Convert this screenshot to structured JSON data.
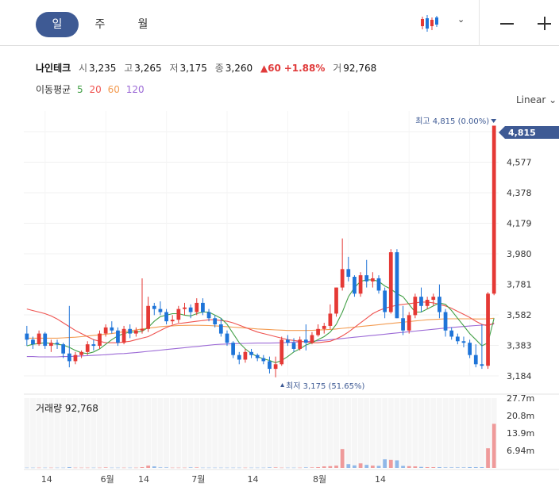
{
  "toolbar": {
    "periods": [
      "일",
      "주",
      "월"
    ],
    "active_period": "일",
    "chart_type_icon": "candlestick-icon",
    "dropdown_icon": "chevron-down-icon",
    "zoom_out_icon": "minus-icon",
    "zoom_in_icon": "plus-icon"
  },
  "quote": {
    "name": "나인테크",
    "open_label": "시",
    "open": "3,235",
    "high_label": "고",
    "high": "3,265",
    "low_label": "저",
    "low": "3,175",
    "close_label": "종",
    "close": "3,260",
    "change": "▲60",
    "change_pct": "+1.88%",
    "volume_label": "거",
    "volume": "92,768"
  },
  "moving_average": {
    "label": "이동평균",
    "periods": [
      "5",
      "20",
      "60",
      "120"
    ],
    "colors": [
      "#43a047",
      "#ef5350",
      "#f39c52",
      "#9c6ad6"
    ]
  },
  "scale_mode": "Linear",
  "colors": {
    "up": "#e53935",
    "down": "#1e74d8",
    "accent": "#3e5a94"
  },
  "chart_data": {
    "type": "candlestick",
    "y_ticks": [
      "4,776",
      "4,577",
      "4,378",
      "4,179",
      "3,980",
      "3,781",
      "3,582",
      "3,383",
      "3,184"
    ],
    "ylim": [
      3184,
      4776
    ],
    "x_ticks": [
      "14",
      "6월",
      "14",
      "7월",
      "14",
      "8월",
      "14"
    ],
    "last_price_label": "4,815",
    "max_label": "최고 4,815 (0.00%)",
    "min_label": "최저 3,175 (51.65%)",
    "candles": [
      [
        3460,
        3510,
        3380,
        3420
      ],
      [
        3420,
        3440,
        3360,
        3390
      ],
      [
        3390,
        3480,
        3380,
        3460
      ],
      [
        3460,
        3470,
        3360,
        3380
      ],
      [
        3380,
        3420,
        3340,
        3400
      ],
      [
        3400,
        3420,
        3360,
        3390
      ],
      [
        3390,
        3400,
        3300,
        3330
      ],
      [
        3330,
        3640,
        3240,
        3280
      ],
      [
        3280,
        3340,
        3260,
        3320
      ],
      [
        3320,
        3350,
        3300,
        3340
      ],
      [
        3340,
        3410,
        3320,
        3390
      ],
      [
        3390,
        3420,
        3350,
        3380
      ],
      [
        3380,
        3480,
        3360,
        3460
      ],
      [
        3460,
        3520,
        3440,
        3500
      ],
      [
        3500,
        3540,
        3460,
        3480
      ],
      [
        3480,
        3500,
        3380,
        3400
      ],
      [
        3400,
        3510,
        3390,
        3490
      ],
      [
        3490,
        3520,
        3430,
        3460
      ],
      [
        3460,
        3500,
        3440,
        3480
      ],
      [
        3480,
        3820,
        3460,
        3490
      ],
      [
        3490,
        3700,
        3470,
        3640
      ],
      [
        3640,
        3660,
        3580,
        3620
      ],
      [
        3620,
        3670,
        3580,
        3600
      ],
      [
        3600,
        3620,
        3520,
        3540
      ],
      [
        3540,
        3580,
        3520,
        3550
      ],
      [
        3550,
        3640,
        3530,
        3620
      ],
      [
        3620,
        3660,
        3580,
        3630
      ],
      [
        3630,
        3650,
        3560,
        3600
      ],
      [
        3600,
        3690,
        3580,
        3660
      ],
      [
        3660,
        3690,
        3580,
        3600
      ],
      [
        3600,
        3620,
        3540,
        3560
      ],
      [
        3560,
        3580,
        3500,
        3520
      ],
      [
        3520,
        3560,
        3440,
        3460
      ],
      [
        3460,
        3480,
        3380,
        3400
      ],
      [
        3400,
        3410,
        3300,
        3320
      ],
      [
        3320,
        3340,
        3260,
        3290
      ],
      [
        3290,
        3360,
        3270,
        3340
      ],
      [
        3340,
        3360,
        3300,
        3320
      ],
      [
        3320,
        3330,
        3280,
        3300
      ],
      [
        3300,
        3320,
        3260,
        3280
      ],
      [
        3280,
        3310,
        3200,
        3230
      ],
      [
        3230,
        3310,
        3175,
        3260
      ],
      [
        3260,
        3440,
        3250,
        3420
      ],
      [
        3420,
        3450,
        3380,
        3400
      ],
      [
        3400,
        3430,
        3340,
        3360
      ],
      [
        3360,
        3440,
        3350,
        3420
      ],
      [
        3420,
        3520,
        3350,
        3400
      ],
      [
        3400,
        3470,
        3390,
        3450
      ],
      [
        3450,
        3520,
        3440,
        3490
      ],
      [
        3490,
        3530,
        3460,
        3510
      ],
      [
        3510,
        3650,
        3490,
        3590
      ],
      [
        3590,
        3760,
        3570,
        3760
      ],
      [
        3760,
        4080,
        3740,
        3880
      ],
      [
        3880,
        3960,
        3800,
        3830
      ],
      [
        3830,
        3840,
        3700,
        3720
      ],
      [
        3720,
        3860,
        3700,
        3840
      ],
      [
        3840,
        3940,
        3760,
        3800
      ],
      [
        3800,
        3860,
        3760,
        3820
      ],
      [
        3820,
        3840,
        3720,
        3740
      ],
      [
        3740,
        3760,
        3560,
        3600
      ],
      [
        3600,
        4010,
        3590,
        3990
      ],
      [
        3990,
        4010,
        3560,
        3560
      ],
      [
        3560,
        3640,
        3450,
        3480
      ],
      [
        3480,
        3600,
        3460,
        3580
      ],
      [
        3580,
        3720,
        3560,
        3700
      ],
      [
        3700,
        3760,
        3600,
        3640
      ],
      [
        3640,
        3700,
        3620,
        3680
      ],
      [
        3680,
        3720,
        3640,
        3700
      ],
      [
        3700,
        3780,
        3560,
        3600
      ],
      [
        3600,
        3620,
        3440,
        3480
      ],
      [
        3480,
        3500,
        3420,
        3440
      ],
      [
        3440,
        3460,
        3390,
        3410
      ],
      [
        3410,
        3440,
        3370,
        3400
      ],
      [
        3400,
        3420,
        3300,
        3320
      ],
      [
        3320,
        3390,
        3240,
        3260
      ],
      [
        3260,
        3520,
        3230,
        3250
      ],
      [
        3250,
        3730,
        3230,
        3720
      ],
      [
        3720,
        4815,
        3710,
        4815
      ]
    ],
    "ma5": [
      3380,
      3390,
      3395,
      3400,
      3395,
      3390,
      3385,
      3370,
      3350,
      3335,
      3330,
      3340,
      3360,
      3390,
      3420,
      3445,
      3460,
      3470,
      3470,
      3475,
      3500,
      3540,
      3570,
      3580,
      3590,
      3590,
      3580,
      3575,
      3590,
      3600,
      3600,
      3580,
      3560,
      3520,
      3460,
      3400,
      3360,
      3330,
      3310,
      3295,
      3285,
      3270,
      3285,
      3310,
      3340,
      3360,
      3385,
      3400,
      3420,
      3440,
      3470,
      3520,
      3600,
      3700,
      3760,
      3800,
      3810,
      3810,
      3800,
      3770,
      3750,
      3720,
      3700,
      3650,
      3600,
      3600,
      3620,
      3640,
      3660,
      3650,
      3610,
      3560,
      3510,
      3460,
      3420,
      3380,
      3400,
      3560
    ],
    "ma20": [
      3620,
      3610,
      3600,
      3590,
      3575,
      3555,
      3530,
      3505,
      3480,
      3460,
      3440,
      3420,
      3410,
      3400,
      3400,
      3400,
      3405,
      3410,
      3420,
      3430,
      3440,
      3460,
      3480,
      3500,
      3515,
      3525,
      3530,
      3535,
      3540,
      3545,
      3550,
      3550,
      3545,
      3540,
      3530,
      3515,
      3500,
      3485,
      3470,
      3460,
      3450,
      3440,
      3430,
      3420,
      3415,
      3410,
      3405,
      3400,
      3400,
      3405,
      3410,
      3425,
      3445,
      3470,
      3500,
      3530,
      3560,
      3590,
      3610,
      3625,
      3635,
      3645,
      3650,
      3655,
      3660,
      3665,
      3665,
      3660,
      3650,
      3640,
      3625,
      3605,
      3585,
      3565,
      3540,
      3520,
      3510,
      3530
    ],
    "ma60": [
      3430,
      3430,
      3430,
      3430,
      3430,
      3430,
      3432,
      3434,
      3436,
      3440,
      3444,
      3448,
      3452,
      3456,
      3460,
      3466,
      3472,
      3478,
      3484,
      3490,
      3495,
      3500,
      3505,
      3508,
      3510,
      3512,
      3513,
      3514,
      3514,
      3513,
      3512,
      3510,
      3508,
      3505,
      3502,
      3499,
      3496,
      3493,
      3490,
      3488,
      3486,
      3484,
      3482,
      3480,
      3480,
      3480,
      3480,
      3481,
      3483,
      3485,
      3487,
      3490,
      3494,
      3498,
      3502,
      3506,
      3510,
      3514,
      3518,
      3522,
      3526,
      3530,
      3534,
      3538,
      3542,
      3546,
      3550,
      3552,
      3554,
      3556,
      3556,
      3556,
      3556,
      3556,
      3555,
      3555,
      3556,
      3560
    ],
    "ma120": [
      3310,
      3310,
      3308,
      3308,
      3308,
      3308,
      3310,
      3310,
      3312,
      3314,
      3316,
      3318,
      3320,
      3322,
      3325,
      3328,
      3330,
      3333,
      3336,
      3340,
      3344,
      3348,
      3352,
      3356,
      3360,
      3364,
      3368,
      3372,
      3376,
      3380,
      3384,
      3388,
      3390,
      3392,
      3394,
      3395,
      3396,
      3397,
      3398,
      3398,
      3398,
      3399,
      3400,
      3402,
      3404,
      3406,
      3408,
      3410,
      3413,
      3416,
      3420,
      3424,
      3428,
      3432,
      3436,
      3440,
      3444,
      3448,
      3452,
      3456,
      3460,
      3464,
      3468,
      3472,
      3476,
      3480,
      3484,
      3488,
      3492,
      3496,
      3500,
      3503,
      3506,
      3509,
      3512,
      3515,
      3518,
      3522
    ],
    "volume_label": "거래량 92,768",
    "volume_ticks": [
      "27.7m",
      "20.8m",
      "13.9m",
      "6.94m"
    ],
    "volume_ylim": [
      0,
      27.7
    ],
    "volume_values": [
      0.1,
      0.1,
      0.1,
      0.1,
      0.1,
      0.1,
      0.1,
      0.3,
      0.1,
      0.1,
      0.1,
      0.1,
      0.1,
      0.2,
      0.1,
      0.1,
      0.1,
      0.1,
      0.1,
      0.3,
      0.9,
      0.6,
      0.2,
      0.2,
      0.1,
      0.1,
      0.1,
      0.2,
      0.2,
      0.1,
      0.1,
      0.1,
      0.1,
      0.1,
      0.1,
      0.1,
      0.1,
      0.1,
      0.1,
      0.1,
      0.2,
      0.2,
      0.1,
      0.1,
      0.1,
      0.1,
      0.2,
      0.2,
      0.3,
      0.6,
      0.7,
      0.9,
      7.5,
      1.5,
      1.0,
      1.8,
      1.2,
      0.9,
      0.8,
      3.4,
      3.2,
      3.0,
      0.8,
      0.7,
      0.6,
      0.4,
      0.3,
      0.3,
      0.3,
      0.2,
      0.2,
      0.2,
      0.2,
      0.3,
      0.3,
      0.3,
      7.8,
      17.5
    ]
  }
}
